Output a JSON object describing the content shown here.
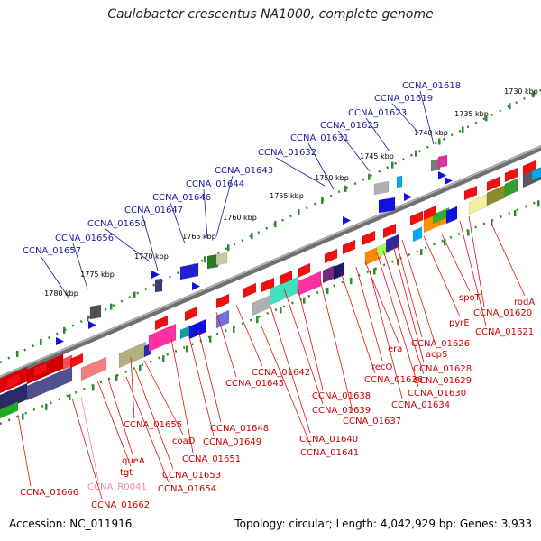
{
  "title": "Caulobacter crescentus NA1000, complete genome",
  "footer": {
    "accession": "Accession: NC_011916",
    "summary": "Topology: circular; Length: 4,042,929 bp; Genes: 3,933"
  },
  "scale_ticks": [
    "1730 kbp",
    "1735 kbp",
    "1740 kbp",
    "1745 kbp",
    "1750 kbp",
    "1755 kbp",
    "1760 kbp",
    "1765 kbp",
    "1770 kbp",
    "1775 kbp",
    "1780 kbp"
  ],
  "upper_labels": [
    "CCNA_01618",
    "CCNA_01619",
    "CCNA_01623",
    "CCNA_01625",
    "CCNA_01631",
    "CCNA_01632",
    "CCNA_01643",
    "CCNA_01644",
    "CCNA_01646",
    "CCNA_01647",
    "CCNA_01650",
    "CCNA_01656",
    "CCNA_01657"
  ],
  "lower_labels": [
    "rodA",
    "CCNA_01620",
    "CCNA_01621",
    "spoT",
    "pyrE",
    "CCNA_01626",
    "acpS",
    "CCNA_01628",
    "CCNA_01629",
    "CCNA_01630",
    "era",
    "recO",
    "CCNA_01634",
    "CCNA_01636",
    "CCNA_01637",
    "CCNA_01638",
    "CCNA_01639",
    "CCNA_01642",
    "CCNA_01645",
    "CCNA_01640",
    "CCNA_01641",
    "CCNA_01648",
    "CCNA_01649",
    "CCNA_01651",
    "CCNA_01655",
    "coaD",
    "CCNA_01653",
    "CCNA_01654",
    "queA",
    "tgt",
    "CCNA_R0041",
    "CCNA_01662",
    "CCNA_01666"
  ],
  "colors": {
    "upper_label": "#1a1aa0",
    "lower_label": "#cc0000",
    "rna_label": "#e68bb5",
    "backbone": "#808080",
    "tick": "#2e8b2e"
  }
}
